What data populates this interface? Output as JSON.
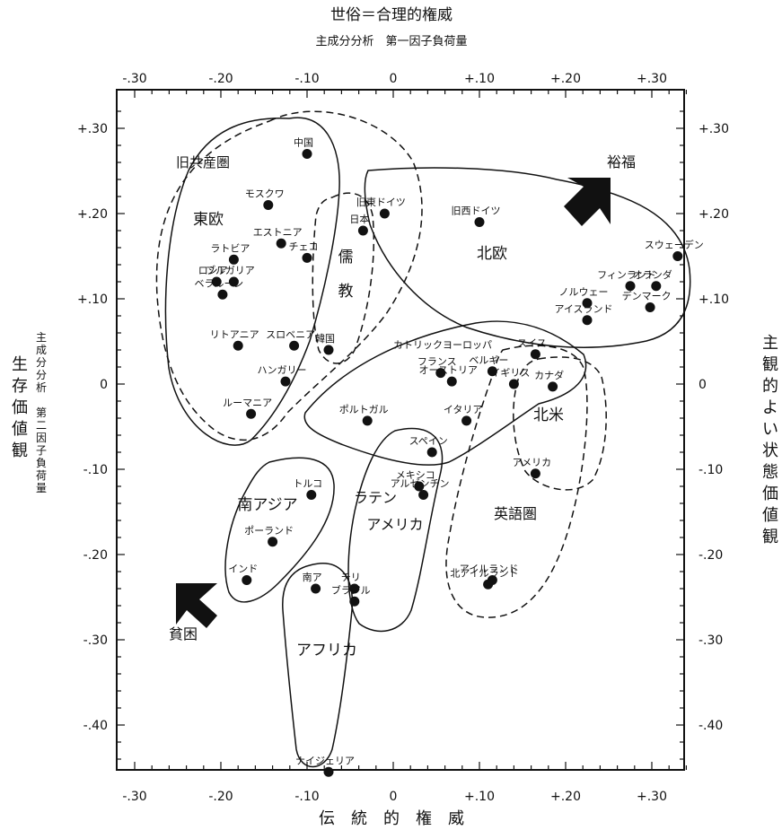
{
  "chart_data": {
    "type": "scatter",
    "top_title": "世俗＝合理的権威",
    "top_subtitle": "主成分分析　第一因子負荷量",
    "bottom_title": "伝　統　的　権　威",
    "left_title": "生存価値観",
    "left_subtitle": "主成分分析　第二因子負荷量",
    "right_title": "主観的よい状態価値観",
    "xlim": [
      -0.33,
      0.35
    ],
    "ylim": [
      -0.46,
      0.36
    ],
    "x_ticks": [
      "-.30",
      "-.20",
      "-.10",
      "0",
      "+.10",
      "+.20",
      "+.30"
    ],
    "x_tick_values": [
      -0.3,
      -0.2,
      -0.1,
      0,
      0.1,
      0.2,
      0.3
    ],
    "y_ticks": [
      "+.30",
      "+.20",
      "+.10",
      "0",
      "-.10",
      "-.20",
      "-.30",
      "-.40"
    ],
    "y_tick_values": [
      0.3,
      0.2,
      0.1,
      0,
      -0.1,
      -0.2,
      -0.3,
      -0.4
    ],
    "points": [
      {
        "label": "中国",
        "x": -0.1,
        "y": 0.27
      },
      {
        "label": "モスクワ",
        "x": -0.145,
        "y": 0.21
      },
      {
        "label": "エストニア",
        "x": -0.13,
        "y": 0.165
      },
      {
        "label": "チェコ",
        "x": -0.1,
        "y": 0.148
      },
      {
        "label": "ラトビア",
        "x": -0.185,
        "y": 0.146
      },
      {
        "label": "ロシア",
        "x": -0.205,
        "y": 0.12
      },
      {
        "label": "ブルガリア",
        "x": -0.185,
        "y": 0.12
      },
      {
        "label": "ベラルーシ",
        "x": -0.198,
        "y": 0.105
      },
      {
        "label": "日本",
        "x": -0.035,
        "y": 0.18
      },
      {
        "label": "旧東ドイツ",
        "x": -0.01,
        "y": 0.2
      },
      {
        "label": "旧西ドイツ",
        "x": 0.1,
        "y": 0.19
      },
      {
        "label": "リトアニア",
        "x": -0.18,
        "y": 0.045
      },
      {
        "label": "スロベニア",
        "x": -0.115,
        "y": 0.045
      },
      {
        "label": "韓国",
        "x": -0.075,
        "y": 0.04
      },
      {
        "label": "ハンガリー",
        "x": -0.125,
        "y": 0.003
      },
      {
        "label": "ルーマニア",
        "x": -0.165,
        "y": -0.035
      },
      {
        "label": "フランス",
        "x": 0.055,
        "y": 0.013
      },
      {
        "label": "オーストリア",
        "x": 0.068,
        "y": 0.003
      },
      {
        "label": "ポルトガル",
        "x": -0.03,
        "y": -0.043
      },
      {
        "label": "イタリア",
        "x": 0.085,
        "y": -0.043
      },
      {
        "label": "スペイン",
        "x": 0.045,
        "y": -0.08
      },
      {
        "label": "ベルギー",
        "x": 0.115,
        "y": 0.015
      },
      {
        "label": "スイス",
        "x": 0.165,
        "y": 0.035
      },
      {
        "label": "イギリス",
        "x": 0.14,
        "y": 0.0
      },
      {
        "label": "カナダ",
        "x": 0.185,
        "y": -0.003
      },
      {
        "label": "アメリカ",
        "x": 0.165,
        "y": -0.105
      },
      {
        "label": "スウェーデン",
        "x": 0.33,
        "y": 0.15
      },
      {
        "label": "オランダ",
        "x": 0.305,
        "y": 0.115
      },
      {
        "label": "フィンランド",
        "x": 0.275,
        "y": 0.115
      },
      {
        "label": "ノルウェー",
        "x": 0.225,
        "y": 0.095
      },
      {
        "label": "アイスランド",
        "x": 0.225,
        "y": 0.075
      },
      {
        "label": "デンマーク",
        "x": 0.298,
        "y": 0.09
      },
      {
        "label": "メキシコ",
        "x": 0.03,
        "y": -0.12
      },
      {
        "label": "アルゼンチン",
        "x": 0.035,
        "y": -0.13
      },
      {
        "label": "チリ",
        "x": -0.045,
        "y": -0.24
      },
      {
        "label": "ブラジル",
        "x": -0.045,
        "y": -0.255
      },
      {
        "label": "トルコ",
        "x": -0.095,
        "y": -0.13
      },
      {
        "label": "ポーランド",
        "x": -0.14,
        "y": -0.185
      },
      {
        "label": "インド",
        "x": -0.17,
        "y": -0.23
      },
      {
        "label": "南ア",
        "x": -0.09,
        "y": -0.24
      },
      {
        "label": "アイルランド",
        "x": 0.115,
        "y": -0.23
      },
      {
        "label": "北アイルランド",
        "x": 0.11,
        "y": -0.235
      },
      {
        "label": "ナイジェリア",
        "x": -0.075,
        "y": -0.455
      }
    ],
    "group_labels": [
      "旧共産圏",
      "東欧",
      "儒",
      "教",
      "北欧",
      "カトリックヨーロッパ",
      "北米",
      "英語圏",
      "南アジア",
      "ラテン",
      "アメリカ",
      "アフリカ"
    ],
    "arrow_labels": [
      "裕福",
      "貧困"
    ]
  }
}
